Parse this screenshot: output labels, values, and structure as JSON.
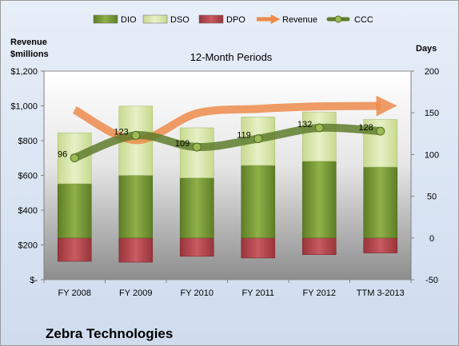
{
  "company": "Zebra Technologies",
  "chart_data": {
    "type": "bar",
    "title": "12-Month Periods",
    "left_axis_title": [
      "Revenue",
      "$millions"
    ],
    "right_axis_title": "Days",
    "categories": [
      "FY 2008",
      "FY 2009",
      "FY 2010",
      "FY 2011",
      "FY 2012",
      "TTM 3-2013"
    ],
    "left_axis": {
      "min": 0,
      "max": 1200,
      "step": 200,
      "tick_labels": [
        "$-",
        "$200",
        "$400",
        "$600",
        "$800",
        "$1,000",
        "$1,200"
      ]
    },
    "right_axis": {
      "min": -50,
      "max": 200,
      "step": 50,
      "tick_labels": [
        "-50",
        "0",
        "50",
        "100",
        "150",
        "200"
      ]
    },
    "legend": {
      "position": "top",
      "entries": [
        "DIO",
        "DSO",
        "DPO",
        "Revenue",
        "CCC"
      ]
    },
    "series": [
      {
        "name": "DIO",
        "type": "stacked-bar",
        "axis": "right",
        "values": [
          65,
          75,
          72,
          87,
          92,
          85
        ],
        "color": "#7a9a35"
      },
      {
        "name": "DSO",
        "type": "stacked-bar",
        "axis": "right",
        "values": [
          61,
          83,
          60,
          58,
          59,
          57
        ],
        "color": "#d6e6a8"
      },
      {
        "name": "DPO",
        "type": "bar-negative",
        "axis": "right",
        "values": [
          -28,
          -29,
          -22,
          -24,
          -20,
          -18
        ],
        "color": "#b8434a"
      },
      {
        "name": "Revenue",
        "type": "line",
        "axis": "left",
        "values": [
          977,
          803,
          957,
          983,
          997,
          1000
        ],
        "color": "#ec8b4b"
      },
      {
        "name": "CCC",
        "type": "line",
        "axis": "right",
        "values": [
          96,
          123,
          109,
          119,
          132,
          128
        ],
        "color": "#5f7d2d"
      }
    ],
    "data_labels": {
      "CCC": [
        "96",
        "123",
        "109",
        "119",
        "132",
        "128"
      ]
    },
    "grid": false
  }
}
